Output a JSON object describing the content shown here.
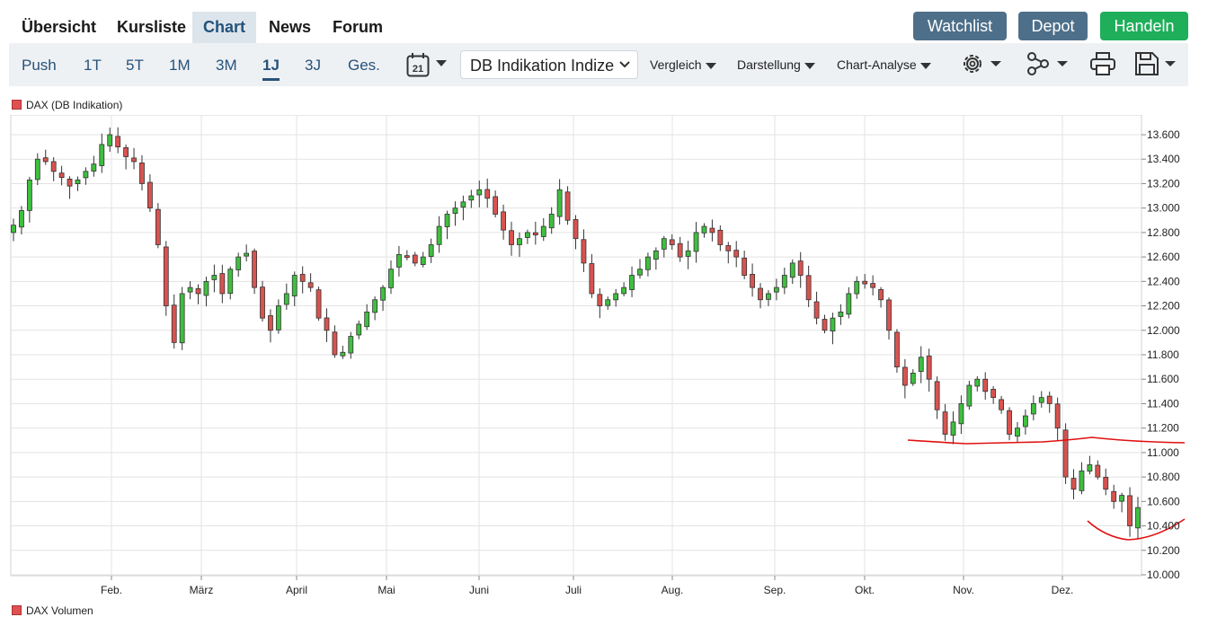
{
  "topnav": {
    "items": [
      {
        "label": "Übersicht"
      },
      {
        "label": "Kursliste"
      },
      {
        "label": "Chart"
      },
      {
        "label": "News"
      },
      {
        "label": "Forum"
      }
    ],
    "active": "Chart",
    "buttons": {
      "watchlist": "Watchlist",
      "depot": "Depot",
      "handeln": "Handeln"
    },
    "colors": {
      "watchlist": "#4e6f89",
      "depot": "#4e6f89",
      "handeln": "#1fae5a"
    }
  },
  "toolbar": {
    "ranges": [
      "Push",
      "1T",
      "5T",
      "1M",
      "3M",
      "1J",
      "3J",
      "Ges."
    ],
    "active_range": "1J",
    "calendar_day": "21",
    "source_select": "DB Indikation Indize",
    "menus": {
      "vergleich": "Vergleich",
      "darstellung": "Darstellung",
      "chart_analyse": "Chart-Analyse"
    },
    "icons": [
      "calendar-icon",
      "gear-icon",
      "network-icon",
      "print-icon",
      "save-icon"
    ]
  },
  "legends": {
    "price": "DAX (DB Indikation)",
    "volume": "DAX Volumen"
  },
  "chart_data": {
    "type": "candlestick",
    "series_name": "DAX (DB Indikation)",
    "y_ticks": [
      "13.600",
      "13.400",
      "13.200",
      "13.000",
      "12.800",
      "12.600",
      "12.400",
      "12.200",
      "12.000",
      "11.800",
      "11.600",
      "11.400",
      "11.200",
      "11.000",
      "10.800",
      "10.600",
      "10.400",
      "10.200",
      "10.000"
    ],
    "ylim": [
      10000,
      13700
    ],
    "x_month_labels": [
      "Feb.",
      "März",
      "April",
      "Mai",
      "Juni",
      "Juli",
      "Aug.",
      "Sep.",
      "Okt.",
      "Nov.",
      "Dez."
    ],
    "grid": true,
    "colors": {
      "up": "#3fbf3f",
      "down": "#d9534f",
      "annotation": "#e01010"
    },
    "close_path": [
      12860,
      12980,
      13230,
      13400,
      13380,
      13300,
      13250,
      13180,
      13230,
      13300,
      13360,
      13520,
      13600,
      13500,
      13420,
      13380,
      13200,
      13000,
      12700,
      12200,
      11900,
      12300,
      12350,
      12300,
      12400,
      12450,
      12300,
      12500,
      12600,
      12630,
      12350,
      12100,
      12000,
      12200,
      12300,
      12450,
      12400,
      12350,
      12100,
      12000,
      11800,
      11820,
      11950,
      12050,
      12150,
      12250,
      12350,
      12500,
      12620,
      12600,
      12550,
      12600,
      12700,
      12850,
      12950,
      13000,
      13050,
      13100,
      13150,
      13080,
      12950,
      12820,
      12700,
      12750,
      12800,
      12780,
      12850,
      12950,
      13150,
      12900,
      12750,
      12550,
      12300,
      12200,
      12250,
      12300,
      12350,
      12450,
      12500,
      12600,
      12650,
      12750,
      12700,
      12600,
      12650,
      12800,
      12850,
      12800,
      12700,
      12650,
      12600,
      12450,
      12350,
      12250,
      12300,
      12350,
      12450,
      12550,
      12450,
      12250,
      12100,
      12000,
      12100,
      12150,
      12300,
      12400,
      12380,
      12350,
      12250,
      12000,
      11700,
      11550,
      11650,
      11780,
      11600,
      11350,
      11150,
      11250,
      11400,
      11550,
      11600,
      11500,
      11450,
      11350,
      11150,
      11200,
      11300,
      11400,
      11450,
      11400,
      11200,
      10800,
      10700,
      10850,
      10900,
      10800,
      10700,
      10600,
      10650,
      10400,
      10550
    ]
  }
}
